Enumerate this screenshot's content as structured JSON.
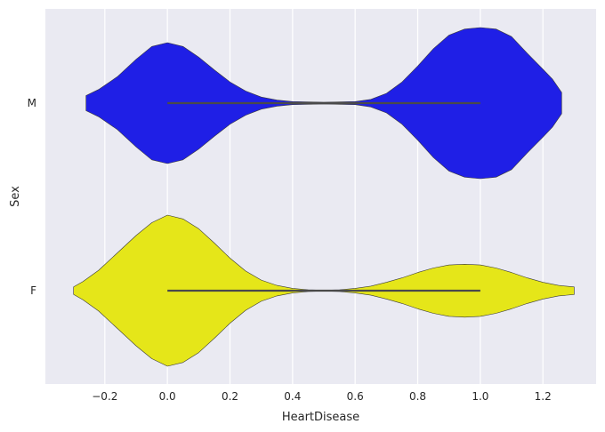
{
  "chart_data": {
    "type": "violin",
    "orientation": "horizontal",
    "xlabel": "HeartDisease",
    "ylabel": "Sex",
    "xlim": [
      -0.39,
      1.37
    ],
    "xticks": [
      -0.2,
      0.0,
      0.2,
      0.4,
      0.6,
      0.8,
      1.0,
      1.2
    ],
    "xtick_labels": [
      "−0.2",
      "0.0",
      "0.2",
      "0.4",
      "0.6",
      "0.8",
      "1.0",
      "1.2"
    ],
    "grid": true,
    "background": "#EAEAF2",
    "categories": [
      "M",
      "F"
    ],
    "series": [
      {
        "category": "M",
        "color": "#1F1FE6",
        "range": [
          -0.26,
          1.26
        ],
        "profile": [
          [
            -0.26,
            0.1
          ],
          [
            -0.22,
            0.18
          ],
          [
            -0.16,
            0.35
          ],
          [
            -0.1,
            0.58
          ],
          [
            -0.05,
            0.75
          ],
          [
            0.0,
            0.8
          ],
          [
            0.05,
            0.75
          ],
          [
            0.1,
            0.61
          ],
          [
            0.15,
            0.44
          ],
          [
            0.2,
            0.28
          ],
          [
            0.25,
            0.16
          ],
          [
            0.3,
            0.08
          ],
          [
            0.35,
            0.04
          ],
          [
            0.4,
            0.02
          ],
          [
            0.5,
            0.012
          ],
          [
            0.6,
            0.02
          ],
          [
            0.65,
            0.05
          ],
          [
            0.7,
            0.13
          ],
          [
            0.75,
            0.28
          ],
          [
            0.8,
            0.49
          ],
          [
            0.85,
            0.72
          ],
          [
            0.9,
            0.9
          ],
          [
            0.95,
            0.98
          ],
          [
            1.0,
            1.0
          ],
          [
            1.05,
            0.98
          ],
          [
            1.1,
            0.88
          ],
          [
            1.15,
            0.66
          ],
          [
            1.2,
            0.45
          ],
          [
            1.23,
            0.32
          ],
          [
            1.26,
            0.14
          ]
        ],
        "box_range": [
          0.0,
          1.0
        ]
      },
      {
        "category": "F",
        "color": "#E5E619",
        "range": [
          -0.3,
          1.3
        ],
        "profile": [
          [
            -0.3,
            0.05
          ],
          [
            -0.27,
            0.12
          ],
          [
            -0.22,
            0.27
          ],
          [
            -0.16,
            0.5
          ],
          [
            -0.1,
            0.73
          ],
          [
            -0.05,
            0.9
          ],
          [
            0.0,
            1.0
          ],
          [
            0.05,
            0.95
          ],
          [
            0.1,
            0.82
          ],
          [
            0.15,
            0.63
          ],
          [
            0.2,
            0.43
          ],
          [
            0.25,
            0.26
          ],
          [
            0.3,
            0.14
          ],
          [
            0.35,
            0.07
          ],
          [
            0.4,
            0.03
          ],
          [
            0.45,
            0.012
          ],
          [
            0.5,
            0.006
          ],
          [
            0.55,
            0.012
          ],
          [
            0.6,
            0.03
          ],
          [
            0.65,
            0.06
          ],
          [
            0.7,
            0.11
          ],
          [
            0.75,
            0.17
          ],
          [
            0.8,
            0.24
          ],
          [
            0.85,
            0.3
          ],
          [
            0.9,
            0.34
          ],
          [
            0.95,
            0.35
          ],
          [
            1.0,
            0.34
          ],
          [
            1.05,
            0.3
          ],
          [
            1.1,
            0.24
          ],
          [
            1.15,
            0.17
          ],
          [
            1.2,
            0.11
          ],
          [
            1.25,
            0.07
          ],
          [
            1.3,
            0.05
          ]
        ],
        "box_range": [
          0.0,
          1.0
        ]
      }
    ]
  }
}
